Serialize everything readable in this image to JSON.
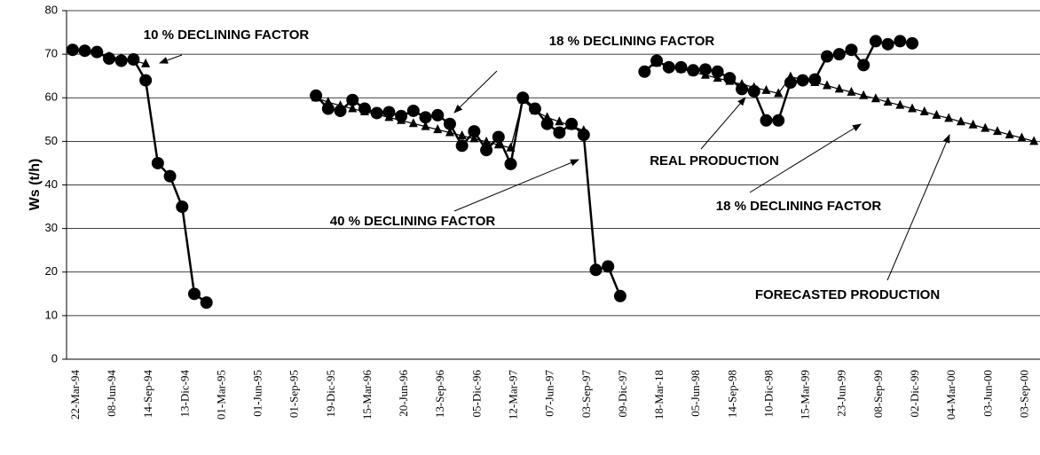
{
  "chart_data": {
    "type": "line",
    "y_label": "Ws (t/h)",
    "ylim": [
      0,
      80
    ],
    "yticks": [
      0,
      10,
      20,
      30,
      40,
      50,
      60,
      70,
      80
    ],
    "grid": true,
    "categories": [
      "22-Mar-94",
      null,
      null,
      "08-Jun-94",
      null,
      null,
      "14-Sep-94",
      null,
      null,
      "13-Dic-94",
      null,
      null,
      "01-Mar-95",
      null,
      null,
      "01-Jun-95",
      null,
      null,
      "01-Sep-95",
      null,
      null,
      "19-Dic-95",
      null,
      null,
      "15-Mar-96",
      null,
      null,
      "20-Jun-96",
      null,
      null,
      "13-Sep-96",
      null,
      null,
      "05-Dic-96",
      null,
      null,
      "12-Mar-97",
      null,
      null,
      "07-Jun-97",
      null,
      null,
      "03-Sep-97",
      null,
      null,
      "09-Dic-97",
      null,
      null,
      "18-Mar-18",
      null,
      null,
      "05-Jun-98",
      null,
      null,
      "14-Sep-98",
      null,
      null,
      "10-Dic-98",
      null,
      null,
      "15-Mar-99",
      null,
      null,
      "23-Jun-99",
      null,
      null,
      "08-Sep-99",
      null,
      null,
      "02-Dic-99",
      null,
      null,
      "04-Mar-00",
      null,
      null,
      "03-Jun-00",
      null,
      null,
      "03-Sep-00",
      null
    ],
    "series": [
      {
        "color": "#000000",
        "marker": "circle",
        "values": [
          71,
          70.8,
          70.5,
          69,
          68.5,
          68.8,
          64,
          45,
          42,
          35,
          15,
          13,
          null,
          null,
          null,
          null,
          null,
          null,
          null,
          null,
          60.5,
          57.5,
          57,
          59.5,
          57.5,
          56.5,
          56.7,
          55.8,
          57,
          55.5,
          56,
          54,
          49,
          52.3,
          48,
          51,
          44.8,
          60,
          57.5,
          54,
          52,
          54,
          51.5,
          20.5,
          21.3,
          14.5,
          null,
          66,
          68.5,
          67,
          67,
          66.3,
          66.5,
          66,
          64.5,
          62,
          61.5,
          54.8,
          54.8,
          63.5,
          64,
          64.2,
          69.5,
          70,
          71,
          67.5,
          73,
          72.3,
          73,
          72.5,
          null,
          null,
          null,
          null,
          null,
          null,
          null,
          null,
          null,
          null
        ]
      },
      {
        "color": "#000000",
        "marker": "triangle",
        "values": [
          71,
          70.6,
          70.2,
          69.5,
          69,
          68.5,
          67.8,
          null,
          null,
          null,
          null,
          null,
          null,
          null,
          null,
          null,
          null,
          null,
          null,
          null,
          60,
          59,
          58.2,
          57.5,
          56.8,
          56.2,
          55.5,
          54.8,
          54.1,
          53.4,
          52.7,
          52,
          51.3,
          50.6,
          49.9,
          49.2,
          48.5,
          59.5,
          57,
          55.5,
          54.5,
          53.5,
          52.5,
          null,
          null,
          null,
          null,
          null,
          68,
          67.3,
          66.6,
          65.9,
          65.2,
          64.5,
          63.8,
          63.1,
          62.4,
          61.7,
          61,
          64.8,
          64.2,
          63.5,
          62.8,
          62,
          61.3,
          60.5,
          59.8,
          59,
          58.3,
          57.5,
          56.8,
          56,
          55.3,
          54.5,
          53.8,
          53,
          52.3,
          51.5,
          50.8,
          50
        ]
      }
    ],
    "annotations": [
      "10 % DECLINING FACTOR",
      "18 % DECLINING FACTOR",
      "40 % DECLINING FACTOR",
      "REAL PRODUCTION",
      "18 % DECLINING FACTOR",
      "FORECASTED PRODUCTION"
    ]
  }
}
